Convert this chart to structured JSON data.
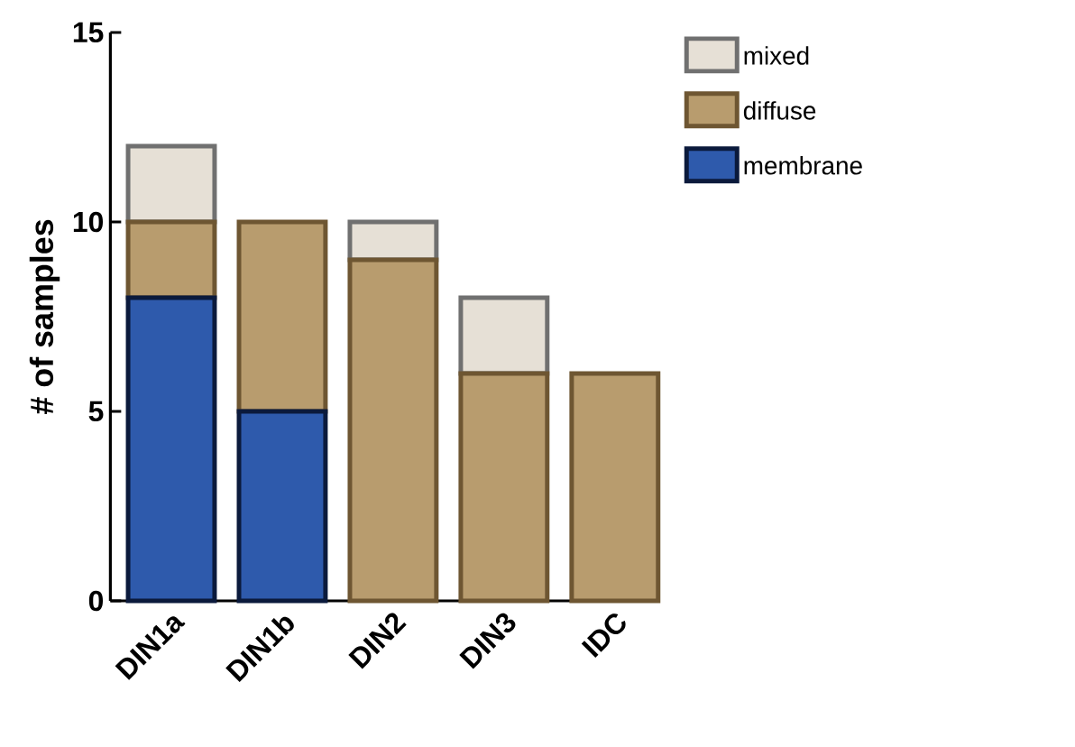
{
  "chart_data": {
    "type": "bar",
    "stacked": true,
    "ylabel": "# of samples",
    "categories": [
      "DIN1a",
      "DIN1b",
      "DIN2",
      "DIN3",
      "IDC"
    ],
    "series": [
      {
        "name": "membrane",
        "color": "#2e5aac",
        "values": [
          8,
          5,
          0,
          0,
          0
        ]
      },
      {
        "name": "diffuse",
        "color": "#b89c6e",
        "values": [
          2,
          5,
          9,
          6,
          6
        ]
      },
      {
        "name": "mixed",
        "color": "#e6e0d6",
        "values": [
          2,
          0,
          1,
          2,
          0
        ]
      }
    ],
    "ylim": [
      0,
      15
    ],
    "yticks": [
      0,
      5,
      10,
      15
    ],
    "grid": false,
    "legend": "top right"
  }
}
